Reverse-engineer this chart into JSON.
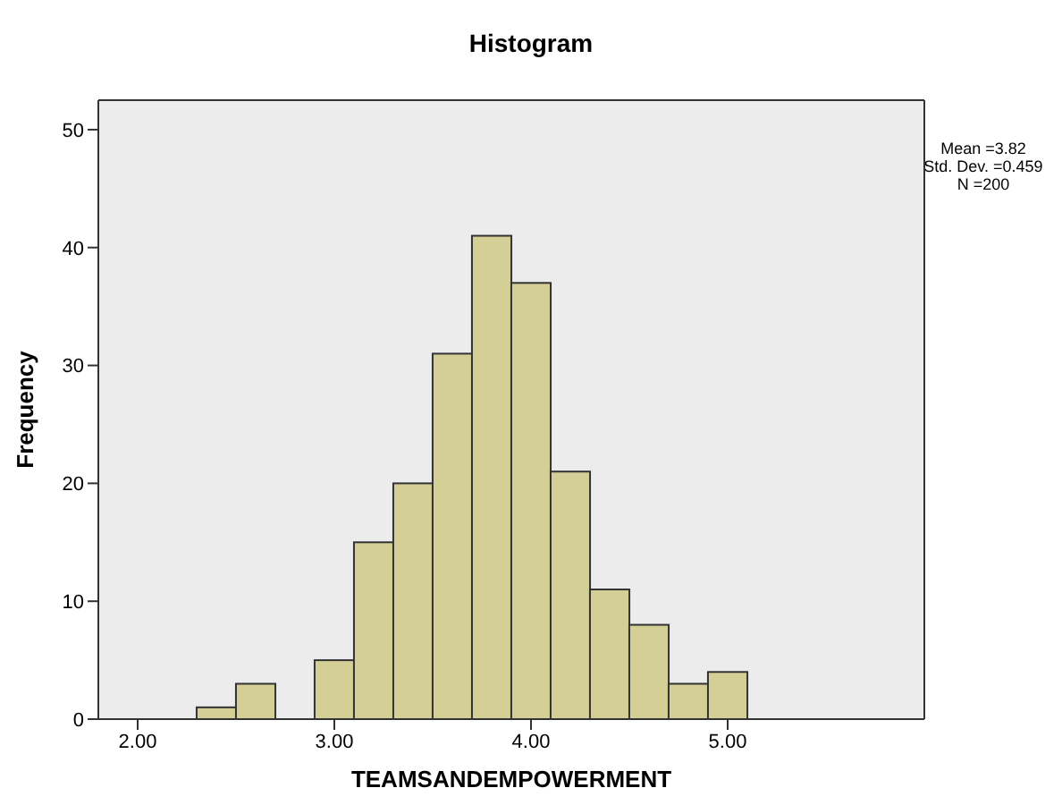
{
  "chart_data": {
    "type": "histogram",
    "title": "Histogram",
    "xlabel": "TEAMSANDEMPOWERMENT",
    "ylabel": "Frequency",
    "bins": [
      2.3,
      2.5,
      2.7,
      2.9,
      3.1,
      3.3,
      3.5,
      3.7,
      3.9,
      4.1,
      4.3,
      4.5,
      4.7,
      4.9,
      5.1
    ],
    "values": [
      1,
      3,
      0,
      5,
      15,
      20,
      31,
      41,
      37,
      21,
      11,
      8,
      3,
      4
    ],
    "color": "#d4cf97",
    "xlim": [
      1.8,
      6.0
    ],
    "xticks": [
      {
        "value": 2,
        "label": "2.00"
      },
      {
        "value": 3,
        "label": "3.00"
      },
      {
        "value": 4,
        "label": "4.00"
      },
      {
        "value": 5,
        "label": "5.00"
      }
    ],
    "ylim": [
      0,
      52.5
    ],
    "yticks": [
      0,
      10,
      20,
      30,
      40,
      50
    ],
    "annotations": [
      "Mean =3.82",
      "Std. Dev. =0.459",
      "N =200"
    ]
  }
}
